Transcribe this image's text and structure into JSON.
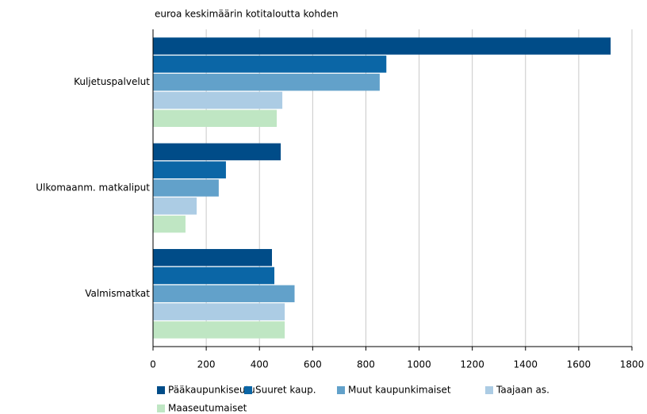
{
  "chart_data": {
    "type": "hbar",
    "axis_label": "euroa keskimäärin kotitaloutta kohden",
    "categories": [
      "Kuljetuspalvelut",
      "Ulkomaanm. matkaliput",
      "Valmismatkat"
    ],
    "series": [
      {
        "name": "Pääkaupunkiseutu",
        "color": "#004c88",
        "values": [
          1720,
          480,
          447
        ]
      },
      {
        "name": "Suuret kaup.",
        "color": "#0b66a6",
        "values": [
          877,
          274,
          456
        ]
      },
      {
        "name": "Muut kaupunkimaiset",
        "color": "#62a1ca",
        "values": [
          852,
          247,
          532
        ]
      },
      {
        "name": "Taajaan as.",
        "color": "#acccE4",
        "values": [
          486,
          164,
          495
        ]
      },
      {
        "name": "Maaseutumaiset",
        "color": "#bfe6c3",
        "values": [
          465,
          122,
          495
        ]
      }
    ],
    "xlim": [
      0,
      1800
    ],
    "xticks": [
      0,
      200,
      400,
      600,
      800,
      1000,
      1200,
      1400,
      1600,
      1800
    ],
    "grid": true
  }
}
